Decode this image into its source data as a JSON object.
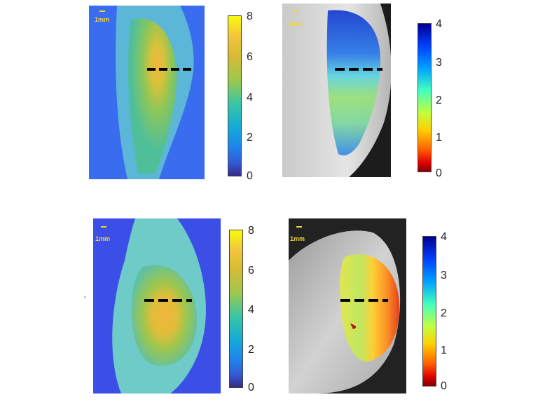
{
  "scale_label": "1mm",
  "colorbar_a": {
    "ticks": [
      "8",
      "6",
      "4",
      "2",
      "0"
    ]
  },
  "colorbar_b": {
    "ticks": [
      "4",
      "3",
      "2",
      "1",
      "0"
    ]
  },
  "colors": {
    "parula_top": "#f9fb0e",
    "parula_bottom": "#352a87",
    "jet_top": "#00008f",
    "jet_bottom": "#800000",
    "scale_label": "#f2d23a"
  }
}
